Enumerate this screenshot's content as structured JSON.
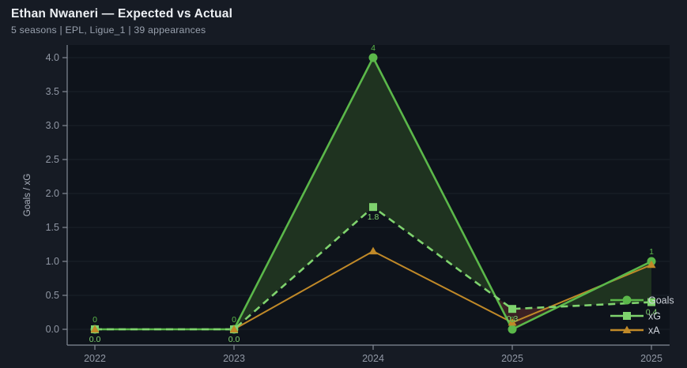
{
  "header": {
    "title": "Ethan Nwaneri — Expected vs Actual",
    "subtitle": "5 seasons | EPL, Ligue_1 | 39 appearances"
  },
  "chart_data": {
    "type": "line",
    "title": "Ethan Nwaneri — Expected vs Actual",
    "categories": [
      "2022",
      "2023",
      "2024",
      "2025",
      "2025"
    ],
    "series": [
      {
        "name": "Goals",
        "values": [
          0,
          0,
          4,
          0,
          1
        ],
        "labels": [
          "0",
          "0",
          "4",
          "0",
          "1"
        ],
        "label_position": "above",
        "color": "#5bb84a",
        "marker": "circle",
        "line_style": "solid"
      },
      {
        "name": "xG",
        "values": [
          0.0,
          0.0,
          1.8,
          0.3,
          0.4
        ],
        "labels": [
          "0.0",
          "0.0",
          "1.8",
          "0.3",
          "0.4"
        ],
        "label_position": "below",
        "color": "#7fd36e",
        "marker": "square",
        "line_style": "dashed"
      },
      {
        "name": "xA",
        "values": [
          0,
          0,
          1.15,
          0.1,
          0.95
        ],
        "labels": null,
        "label_position": "none",
        "color": "#c08928",
        "marker": "triangle",
        "line_style": "solid"
      }
    ],
    "xlabel": "",
    "ylabel": "Goals / xG",
    "ylim": [
      0,
      4.0
    ],
    "yticks": [
      0.0,
      0.5,
      1.0,
      1.5,
      2.0,
      2.5,
      3.0,
      3.5,
      4.0
    ],
    "grid": true,
    "legend_position": "bottom-right-inside",
    "fill_between": {
      "series_a": "Goals",
      "series_b": "xG",
      "positive_color": "#1f3320",
      "negative_color": "#3b2124"
    }
  },
  "colors": {
    "page_bg": "#161b24",
    "plot_bg": "#0e131b",
    "title_text": "#edf0f4",
    "subtitle_text": "#98a0ad",
    "axis_text": "#9097a4",
    "axis_label_text": "#aab0bc",
    "spine": "#848b97",
    "grid": "#1a2029",
    "legend_text": "#cdd2da"
  }
}
